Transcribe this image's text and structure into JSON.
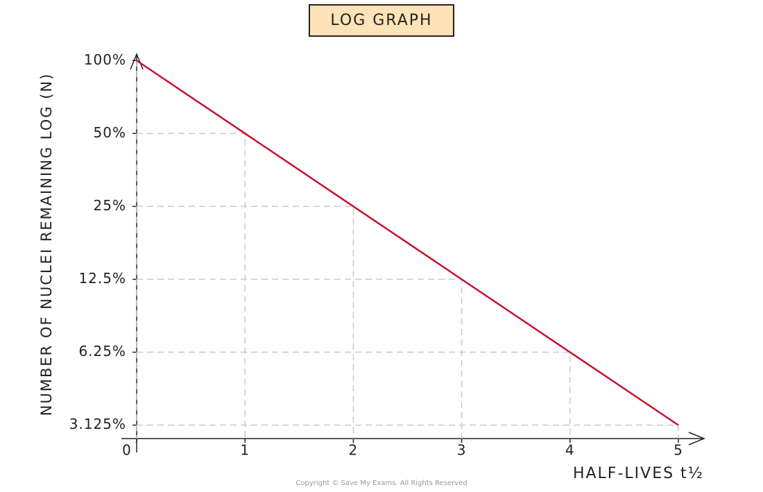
{
  "chart_data": {
    "type": "line",
    "title": "LOG GRAPH",
    "y_label": "NUMBER OF NUCLEI REMAINING LOG (N)",
    "x_label": "HALF-LIVES t½",
    "footer": "Copyright © Save My Exams. All Rights Reserved",
    "x": [
      0,
      1,
      2,
      3,
      4,
      5
    ],
    "series": [
      {
        "name": "N",
        "color": "#c8102e",
        "values": [
          100,
          50,
          25,
          12.5,
          6.25,
          3.125
        ]
      }
    ],
    "xlim": [
      0,
      5
    ],
    "xticks": [
      0,
      1,
      2,
      3,
      4,
      5
    ],
    "ylim": [
      2.75,
      107
    ],
    "yticks": [
      {
        "value": 100,
        "label": "100%"
      },
      {
        "value": 50,
        "label": "50%"
      },
      {
        "value": 25,
        "label": "25%"
      },
      {
        "value": 12.5,
        "label": "12.5%"
      },
      {
        "value": 6.25,
        "label": "6.25%"
      },
      {
        "value": 3.125,
        "label": "3.125%"
      }
    ],
    "log_scale_y": true,
    "grid": true
  }
}
